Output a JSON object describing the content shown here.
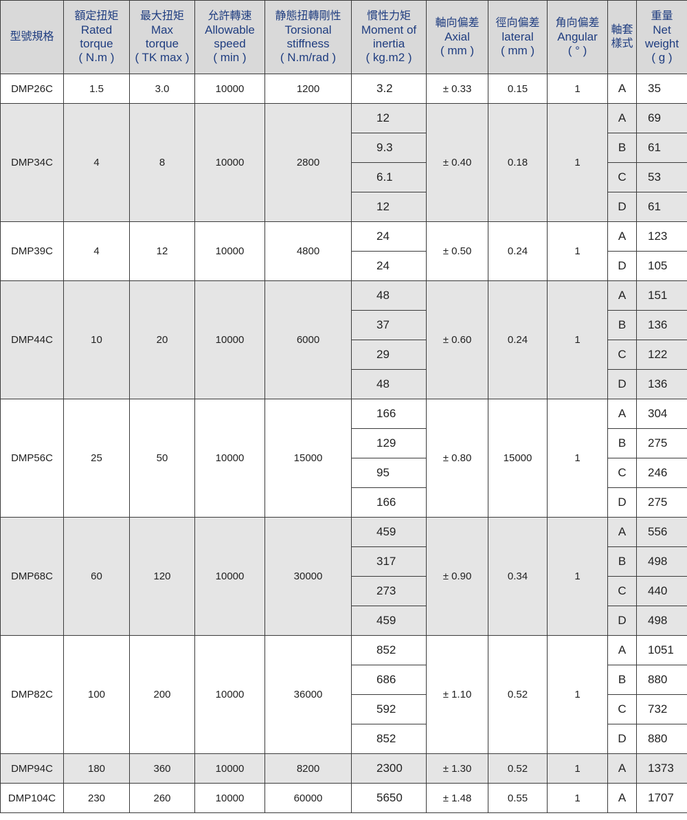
{
  "headers": [
    {
      "zh": "型號規格",
      "en": []
    },
    {
      "zh": "額定扭矩",
      "en": [
        "Rated",
        "torque",
        "( N.m )"
      ]
    },
    {
      "zh": "最大扭矩",
      "en": [
        "Max",
        "torque",
        "( TK max )"
      ]
    },
    {
      "zh": "允許轉速",
      "en": [
        "Allowable",
        "speed",
        "( min  )"
      ]
    },
    {
      "zh": "静態扭轉剛性",
      "en": [
        "Torsional",
        "stiffness",
        "( N.m/rad )"
      ]
    },
    {
      "zh": "慣性力矩",
      "en": [
        "Moment of",
        "inertia",
        "( kg.m2 )"
      ]
    },
    {
      "zh": "軸向偏差",
      "en": [
        "Axial",
        "( mm )"
      ]
    },
    {
      "zh": "徑向偏差",
      "en": [
        "lateral",
        "( mm )"
      ]
    },
    {
      "zh": "角向偏差",
      "en": [
        "Angular",
        "( °  )"
      ]
    },
    {
      "zh": "軸套樣式",
      "en": []
    },
    {
      "zh": "重量",
      "en": [
        "Net",
        "weight",
        "( g )"
      ]
    }
  ],
  "rows": [
    {
      "model": "DMP26C",
      "rated": "1.5",
      "max": "3.0",
      "speed": "10000",
      "stiffness": "1200",
      "axial": "± 0.33",
      "lateral": "0.15",
      "angular": "1",
      "variants": [
        [
          "3.2",
          "A",
          "35"
        ]
      ]
    },
    {
      "model": "DMP34C",
      "rated": "4",
      "max": "8",
      "speed": "10000",
      "stiffness": "2800",
      "axial": "± 0.40",
      "lateral": "0.18",
      "angular": "1",
      "variants": [
        [
          "12",
          "A",
          "69"
        ],
        [
          "9.3",
          "B",
          "61"
        ],
        [
          "6.1",
          "C",
          "53"
        ],
        [
          "12",
          "D",
          "61"
        ]
      ]
    },
    {
      "model": "DMP39C",
      "rated": "4",
      "max": "12",
      "speed": "10000",
      "stiffness": "4800",
      "axial": "± 0.50",
      "lateral": "0.24",
      "angular": "1",
      "variants": [
        [
          "24",
          "A",
          "123"
        ],
        [
          "24",
          "D",
          "105"
        ]
      ]
    },
    {
      "model": "DMP44C",
      "rated": "10",
      "max": "20",
      "speed": "10000",
      "stiffness": "6000",
      "axial": "± 0.60",
      "lateral": "0.24",
      "angular": "1",
      "variants": [
        [
          "48",
          "A",
          "151"
        ],
        [
          "37",
          "B",
          "136"
        ],
        [
          "29",
          "C",
          "122"
        ],
        [
          "48",
          "D",
          "136"
        ]
      ]
    },
    {
      "model": "DMP56C",
      "rated": "25",
      "max": "50",
      "speed": "10000",
      "stiffness": "15000",
      "axial": "± 0.80",
      "lateral": "15000",
      "angular": "1",
      "variants": [
        [
          "166",
          "A",
          "304"
        ],
        [
          "129",
          "B",
          "275"
        ],
        [
          "95",
          "C",
          "246"
        ],
        [
          "166",
          "D",
          "275"
        ]
      ]
    },
    {
      "model": "DMP68C",
      "rated": "60",
      "max": "120",
      "speed": "10000",
      "stiffness": "30000",
      "axial": "± 0.90",
      "lateral": "0.34",
      "angular": "1",
      "variants": [
        [
          "459",
          "A",
          "556"
        ],
        [
          "317",
          "B",
          "498"
        ],
        [
          "273",
          "C",
          "440"
        ],
        [
          "459",
          "D",
          "498"
        ]
      ]
    },
    {
      "model": "DMP82C",
      "rated": "100",
      "max": "200",
      "speed": "10000",
      "stiffness": "36000",
      "axial": "± 1.10",
      "lateral": "0.52",
      "angular": "1",
      "variants": [
        [
          "852",
          "A",
          "1051"
        ],
        [
          "686",
          "B",
          "880"
        ],
        [
          "592",
          "C",
          "732"
        ],
        [
          "852",
          "D",
          "880"
        ]
      ]
    },
    {
      "model": "DMP94C",
      "rated": "180",
      "max": "360",
      "speed": "10000",
      "stiffness": "8200",
      "axial": "± 1.30",
      "lateral": "0.52",
      "angular": "1",
      "variants": [
        [
          "2300",
          "A",
          "1373"
        ]
      ]
    },
    {
      "model": "DMP104C",
      "rated": "230",
      "max": "260",
      "speed": "10000",
      "stiffness": "60000",
      "axial": "± 1.48",
      "lateral": "0.55",
      "angular": "1",
      "variants": [
        [
          "5650",
          "A",
          "1707"
        ]
      ]
    }
  ]
}
